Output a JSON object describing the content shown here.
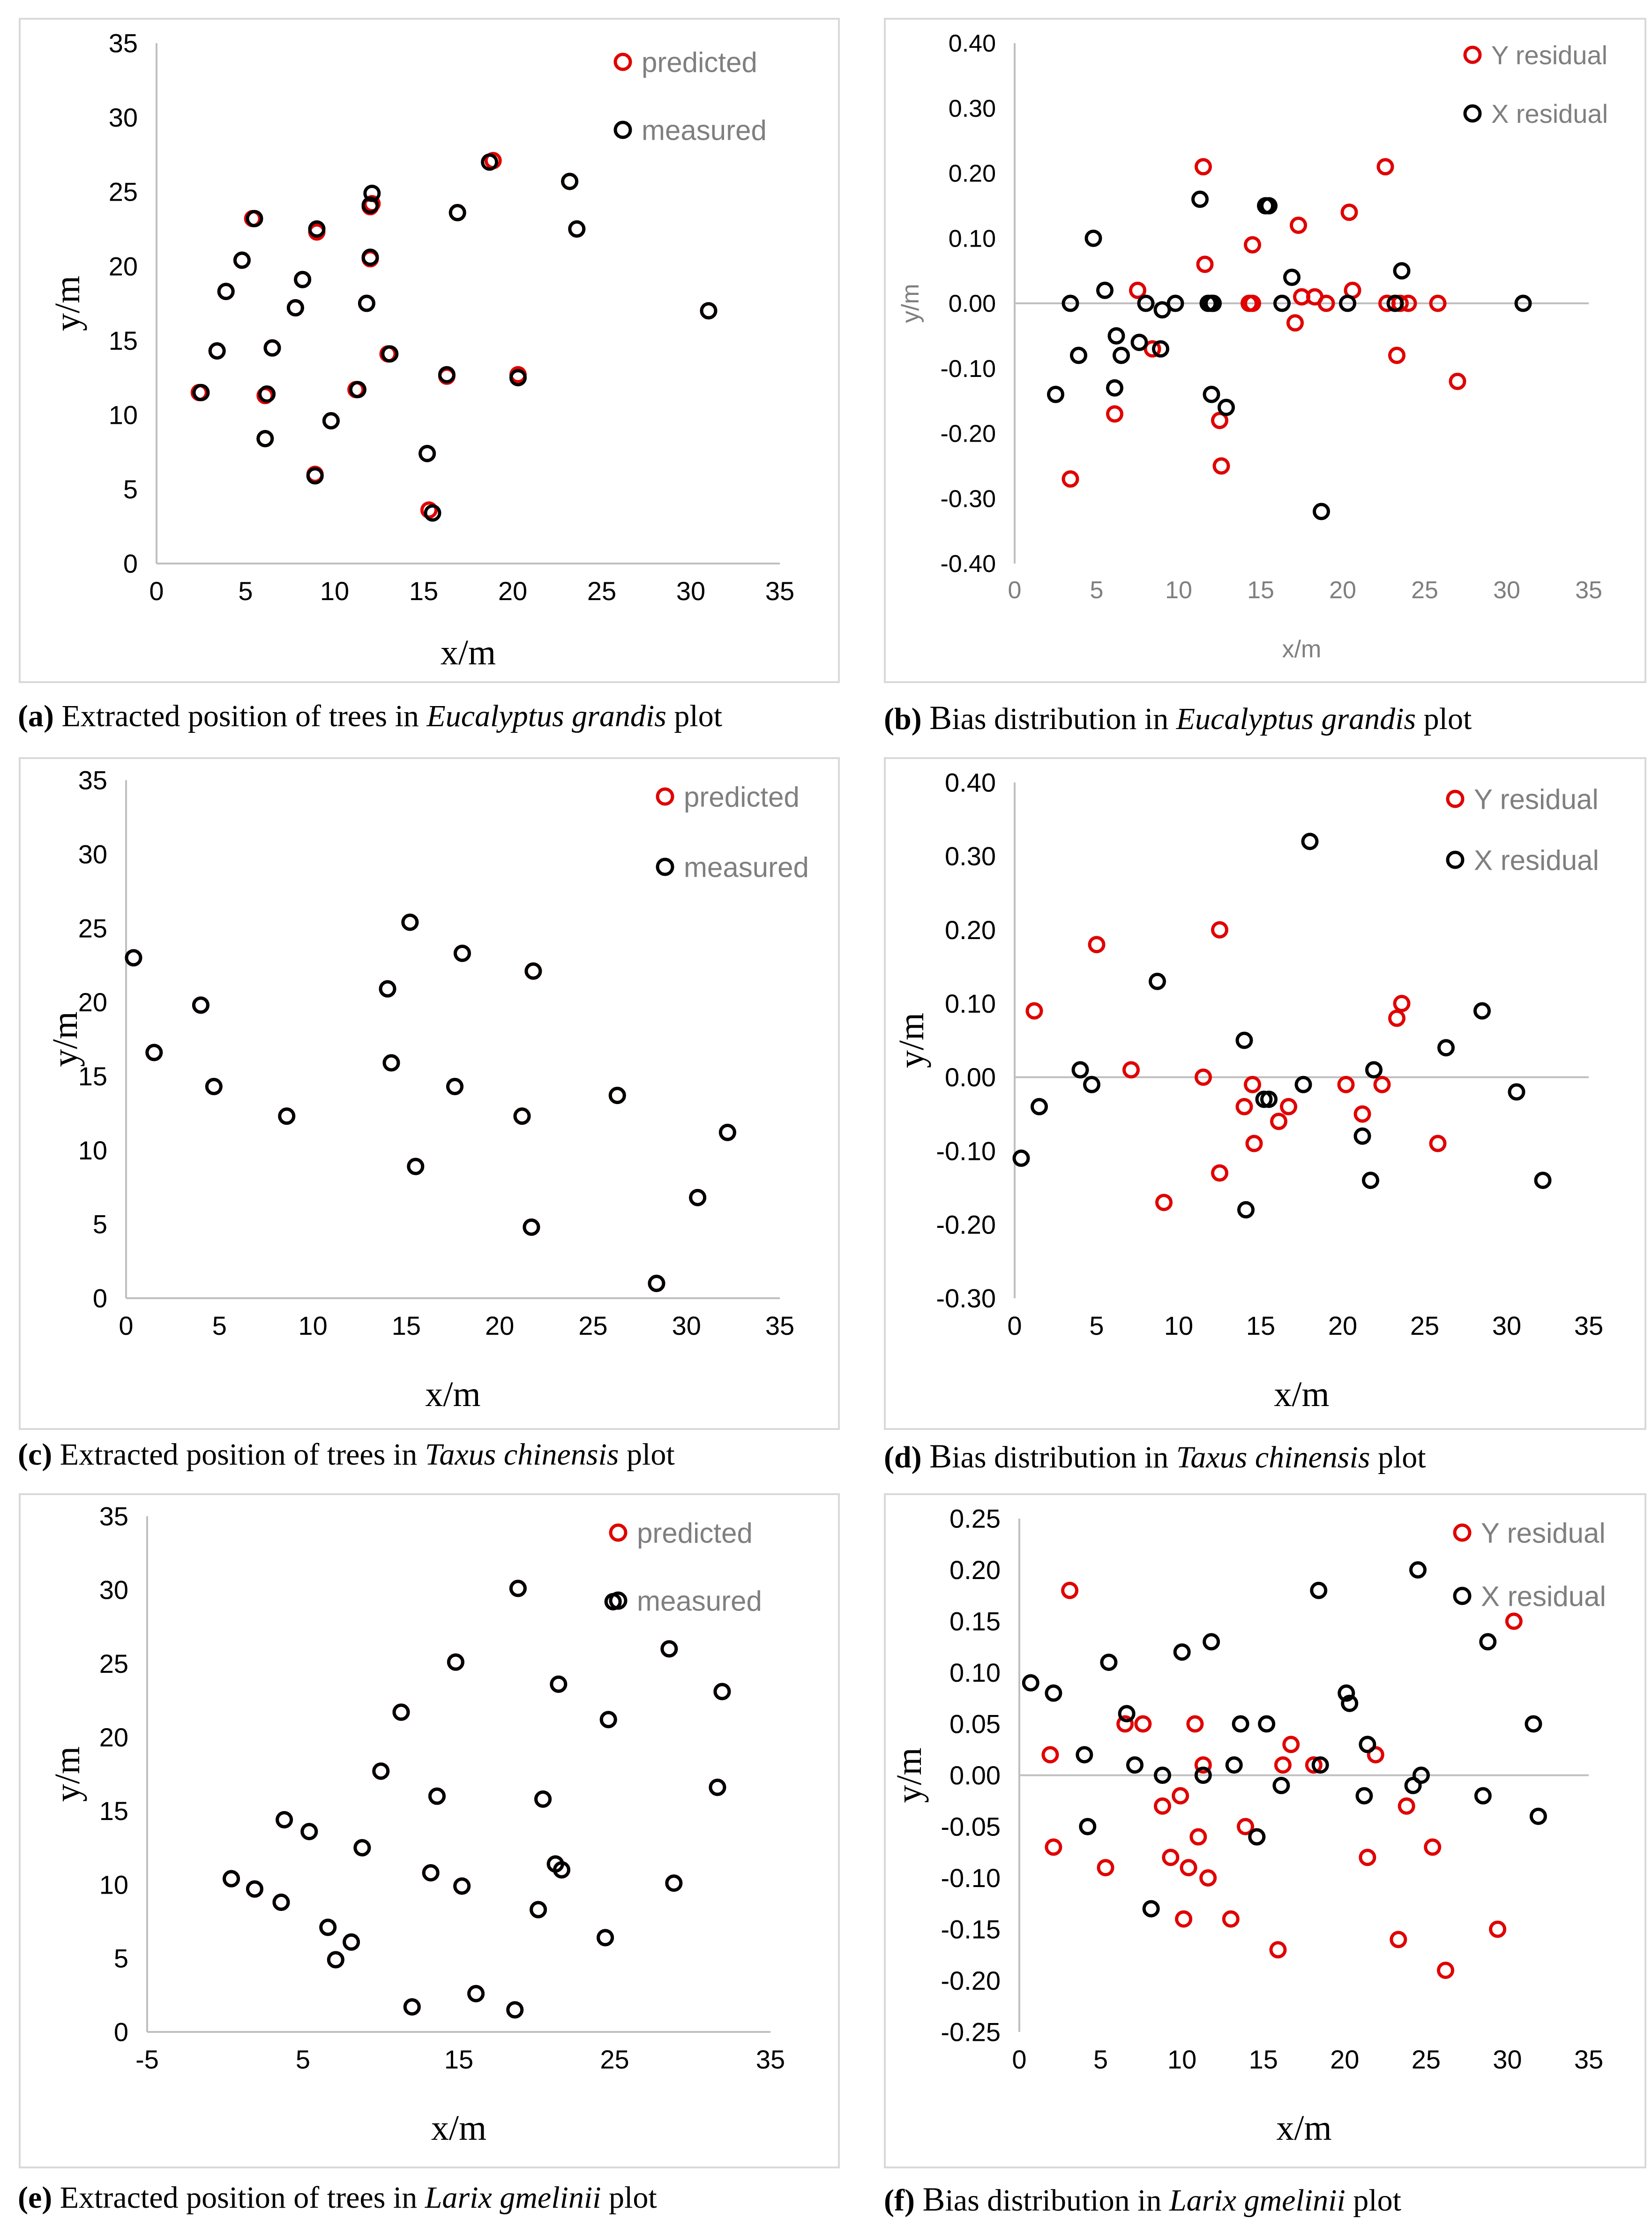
{
  "colors": {
    "predicted": "#e00000",
    "measured": "#000000",
    "axis": "#bfbfbf",
    "legend_text": "#7f7f7f"
  },
  "captions": {
    "a": {
      "label": "(a)",
      "pre": " Extracted position of trees in ",
      "species": "Eucalyptus grandis",
      "post": " plot"
    },
    "b": {
      "label": "(b)",
      "b": "B",
      "pre": "ias distribution in ",
      "species": "Eucalyptus grandis",
      "post": " plot"
    },
    "c": {
      "label": "(c)",
      "pre": " Extracted position of trees in ",
      "species": "Taxus chinensis",
      "post": " plot"
    },
    "d": {
      "label": "(d)",
      "b": "B",
      "pre": "ias distribution in ",
      "species": "Taxus chinensis",
      "post": " plot"
    },
    "e": {
      "label": "(e)",
      "pre": " Extracted position of trees in ",
      "species": "Larix gmelinii",
      "post": " plot"
    },
    "f": {
      "label": "(f)",
      "b": "B",
      "pre": "ias distribution in ",
      "species": "Larix gmelinii",
      "post": " plot"
    }
  },
  "chart_data": [
    {
      "id": "a",
      "type": "scatter",
      "xlabel": "x/m",
      "ylabel": "y/m",
      "xlim": [
        0,
        35
      ],
      "ylim": [
        0,
        35
      ],
      "xticks": [
        "0",
        "5",
        "10",
        "15",
        "20",
        "25",
        "30",
        "35"
      ],
      "yticks": [
        "0",
        "5",
        "10",
        "15",
        "20",
        "25",
        "30",
        "35"
      ],
      "series": [
        {
          "name": "predicted",
          "x": [
            2.4,
            3.4,
            3.9,
            4.8,
            5.4,
            6.1,
            6.1,
            6.5,
            7.8,
            8.2,
            8.9,
            9.0,
            9.8,
            11.2,
            11.8,
            12.0,
            12.0,
            12.1,
            13.0,
            15.2,
            15.3,
            16.3,
            16.9,
            18.9,
            20.3,
            23.2,
            23.6,
            31.0
          ],
          "y": [
            11.5,
            14.3,
            18.3,
            20.4,
            23.2,
            8.4,
            11.3,
            14.5,
            17.2,
            19.1,
            6.0,
            22.3,
            9.6,
            11.7,
            17.5,
            20.5,
            24.0,
            24.2,
            14.1,
            7.4,
            3.6,
            12.6,
            23.6,
            27.1,
            12.7,
            25.7,
            22.5,
            17.0
          ]
        },
        {
          "name": "measured",
          "x": [
            2.5,
            3.4,
            3.9,
            4.8,
            5.5,
            6.1,
            6.2,
            6.5,
            7.8,
            8.2,
            8.9,
            9.0,
            9.8,
            11.3,
            11.8,
            12.0,
            12.0,
            12.1,
            13.1,
            15.2,
            15.5,
            16.3,
            16.9,
            18.7,
            20.3,
            23.2,
            23.6,
            31.0
          ],
          "y": [
            11.5,
            14.3,
            18.3,
            20.4,
            23.2,
            8.4,
            11.4,
            14.5,
            17.2,
            19.1,
            5.9,
            22.5,
            9.6,
            11.7,
            17.5,
            20.6,
            24.1,
            24.9,
            14.1,
            7.4,
            3.4,
            12.7,
            23.6,
            27.0,
            12.5,
            25.7,
            22.5,
            17.0
          ]
        }
      ],
      "legend": [
        "predicted",
        "measured"
      ]
    },
    {
      "id": "b",
      "type": "scatter",
      "xlabel": "x/m",
      "ylabel": "y/m",
      "xlim": [
        0,
        35
      ],
      "ylim": [
        -0.4,
        0.4
      ],
      "xticks": [
        "0",
        "5",
        "10",
        "15",
        "20",
        "25",
        "30",
        "35"
      ],
      "yticks": [
        "-0.40",
        "-0.30",
        "-0.20",
        "-0.10",
        "0.00",
        "0.10",
        "0.20",
        "0.30",
        "0.40"
      ],
      "series": [
        {
          "name": "Y residual",
          "x": [
            3.4,
            6.1,
            7.5,
            8.4,
            11.5,
            11.6,
            12.5,
            12.6,
            14.3,
            14.5,
            14.5,
            17.1,
            17.3,
            17.5,
            18.3,
            19.0,
            20.4,
            20.6,
            22.6,
            22.7,
            23.3,
            23.5,
            24.0,
            25.8,
            27.0
          ],
          "y": [
            -0.27,
            -0.17,
            0.02,
            -0.07,
            0.21,
            0.06,
            -0.18,
            -0.25,
            0.0,
            0.09,
            0.0,
            -0.03,
            0.12,
            0.01,
            0.01,
            0.0,
            0.14,
            0.02,
            0.21,
            0.0,
            -0.08,
            0.0,
            0.0,
            0.0,
            -0.12
          ]
        },
        {
          "name": "X residual",
          "x": [
            2.5,
            3.4,
            3.9,
            4.8,
            5.5,
            6.1,
            6.2,
            6.5,
            7.6,
            8.0,
            8.9,
            9.0,
            9.8,
            11.3,
            11.8,
            12.0,
            12.0,
            12.1,
            12.9,
            15.3,
            15.5,
            16.3,
            16.9,
            18.7,
            20.3,
            23.2,
            23.6,
            31.0
          ],
          "y": [
            -0.14,
            0.0,
            -0.08,
            0.1,
            0.02,
            -0.13,
            -0.05,
            -0.08,
            -0.06,
            0.0,
            -0.07,
            -0.01,
            0.0,
            0.16,
            0.0,
            -0.14,
            0.0,
            0.0,
            -0.16,
            0.15,
            0.15,
            0.0,
            0.04,
            -0.32,
            0.0,
            0.0,
            0.05,
            0.0
          ]
        }
      ],
      "legend": [
        "Y residual",
        "X residual"
      ]
    },
    {
      "id": "c",
      "type": "scatter",
      "xlabel": "x/m",
      "ylabel": "y/m",
      "xlim": [
        0,
        35
      ],
      "ylim": [
        0,
        35
      ],
      "xticks": [
        "0",
        "5",
        "10",
        "15",
        "20",
        "25",
        "30",
        "35"
      ],
      "yticks": [
        "0",
        "5",
        "10",
        "15",
        "20",
        "25",
        "30",
        "35"
      ],
      "series": [
        {
          "name": "predicted",
          "x": [
            0.4,
            1.5,
            4.0,
            4.7,
            8.6,
            14.0,
            14.2,
            15.2,
            15.5,
            17.6,
            18.0,
            21.2,
            21.8,
            21.7,
            26.3,
            28.4,
            30.6,
            32.2
          ],
          "y": [
            23.0,
            16.6,
            19.8,
            14.3,
            12.3,
            20.9,
            15.9,
            25.4,
            8.9,
            14.3,
            23.3,
            12.3,
            22.1,
            4.8,
            13.7,
            1.0,
            6.8,
            11.2
          ]
        },
        {
          "name": "measured",
          "x": [
            0.4,
            1.5,
            4.0,
            4.7,
            8.6,
            14.0,
            14.2,
            15.2,
            15.5,
            17.6,
            18.0,
            21.2,
            21.8,
            21.7,
            26.3,
            28.4,
            30.6,
            32.2
          ],
          "y": [
            23.0,
            16.6,
            19.8,
            14.3,
            12.3,
            20.9,
            15.9,
            25.4,
            8.9,
            14.3,
            23.3,
            12.3,
            22.1,
            4.8,
            13.7,
            1.0,
            6.8,
            11.2
          ]
        }
      ],
      "legend": [
        "predicted",
        "measured"
      ]
    },
    {
      "id": "d",
      "type": "scatter",
      "xlabel": "x/m",
      "ylabel": "y/m",
      "xlim": [
        0,
        35
      ],
      "ylim": [
        -0.3,
        0.4
      ],
      "xticks": [
        "0",
        "5",
        "10",
        "15",
        "20",
        "25",
        "30",
        "35"
      ],
      "yticks": [
        "-0.30",
        "-0.20",
        "-0.10",
        "0.00",
        "0.10",
        "0.20",
        "0.30",
        "0.40"
      ],
      "series": [
        {
          "name": "Y residual",
          "x": [
            1.2,
            5.0,
            7.1,
            9.1,
            11.5,
            12.5,
            12.5,
            14.0,
            14.5,
            14.6,
            16.1,
            16.7,
            20.2,
            21.2,
            22.4,
            23.3,
            23.6,
            25.8
          ],
          "y": [
            0.09,
            0.18,
            0.01,
            -0.17,
            0.0,
            0.2,
            -0.13,
            -0.04,
            -0.01,
            -0.09,
            -0.06,
            -0.04,
            -0.01,
            -0.05,
            -0.01,
            0.08,
            0.1,
            -0.09
          ]
        },
        {
          "name": "X residual",
          "x": [
            0.4,
            1.5,
            4.0,
            4.7,
            8.7,
            14.0,
            14.1,
            15.2,
            15.5,
            17.6,
            18.0,
            21.2,
            21.7,
            21.9,
            26.3,
            28.5,
            30.6,
            32.2
          ],
          "y": [
            -0.11,
            -0.04,
            0.01,
            -0.01,
            0.13,
            0.05,
            -0.18,
            -0.03,
            -0.03,
            -0.01,
            0.32,
            -0.08,
            -0.14,
            0.01,
            0.04,
            0.09,
            -0.02,
            -0.14
          ]
        }
      ],
      "legend": [
        "Y residual",
        "X residual"
      ]
    },
    {
      "id": "e",
      "type": "scatter",
      "xlabel": "x/m",
      "ylabel": "y/m",
      "xlim": [
        -5,
        35
      ],
      "ylim": [
        0,
        35
      ],
      "xticks": [
        "-5",
        "5",
        "15",
        "25",
        "35"
      ],
      "yticks": [
        "0",
        "5",
        "10",
        "15",
        "20",
        "25",
        "30",
        "35"
      ],
      "series": [
        {
          "name": "predicted",
          "x": [
            0.4,
            1.9,
            3.6,
            3.8,
            5.4,
            6.6,
            7.1,
            8.1,
            8.8,
            10.0,
            11.3,
            12.0,
            13.2,
            13.6,
            14.8,
            15.2,
            16.1,
            18.6,
            18.8,
            20.1,
            20.4,
            21.2,
            21.4,
            21.6,
            24.4,
            24.6,
            24.9,
            28.5,
            28.8,
            31.6,
            31.9
          ],
          "y": [
            10.4,
            9.7,
            8.8,
            14.4,
            13.6,
            7.1,
            4.9,
            6.1,
            12.5,
            17.7,
            21.7,
            1.7,
            10.8,
            16.0,
            25.1,
            9.9,
            2.6,
            1.5,
            30.1,
            8.3,
            15.8,
            11.4,
            23.6,
            11.0,
            6.4,
            21.2,
            29.2,
            26.0,
            10.1,
            16.6,
            23.1
          ]
        },
        {
          "name": "measured",
          "x": [
            0.4,
            1.9,
            3.6,
            3.8,
            5.4,
            6.6,
            7.1,
            8.1,
            8.8,
            10.0,
            11.3,
            12.0,
            13.2,
            13.6,
            14.8,
            15.2,
            16.1,
            18.6,
            18.8,
            20.1,
            20.4,
            21.2,
            21.4,
            21.6,
            24.4,
            24.6,
            24.9,
            28.5,
            28.8,
            31.6,
            31.9
          ],
          "y": [
            10.4,
            9.7,
            8.8,
            14.4,
            13.6,
            7.1,
            4.9,
            6.1,
            12.5,
            17.7,
            21.7,
            1.7,
            10.8,
            16.0,
            25.1,
            9.9,
            2.6,
            1.5,
            30.1,
            8.3,
            15.8,
            11.4,
            23.6,
            11.0,
            6.4,
            21.2,
            29.2,
            26.0,
            10.1,
            16.6,
            23.1
          ]
        }
      ],
      "legend": [
        "predicted",
        "measured"
      ]
    },
    {
      "id": "f",
      "type": "scatter",
      "xlabel": "x/m",
      "ylabel": "y/m",
      "xlim": [
        0,
        35
      ],
      "ylim": [
        -0.25,
        0.25
      ],
      "xticks": [
        "0",
        "5",
        "10",
        "15",
        "20",
        "25",
        "30",
        "35"
      ],
      "yticks": [
        "-0.25",
        "-0.20",
        "-0.15",
        "-0.10",
        "-0.05",
        "0.00",
        "0.05",
        "0.10",
        "0.15",
        "0.20",
        "0.25"
      ],
      "series": [
        {
          "name": "Y residual",
          "x": [
            1.9,
            2.1,
            3.1,
            5.3,
            6.5,
            7.6,
            8.8,
            9.3,
            9.9,
            10.1,
            10.4,
            10.8,
            11.0,
            11.3,
            11.6,
            13.0,
            13.9,
            14.6,
            15.9,
            16.2,
            16.7,
            18.1,
            21.4,
            21.9,
            23.3,
            23.8,
            25.4,
            26.2,
            29.4,
            30.4
          ],
          "y": [
            0.02,
            -0.07,
            0.18,
            -0.09,
            0.05,
            0.05,
            -0.03,
            -0.08,
            -0.02,
            -0.14,
            -0.09,
            0.05,
            -0.06,
            0.01,
            -0.1,
            -0.14,
            -0.05,
            -0.06,
            -0.17,
            0.01,
            0.03,
            0.01,
            -0.08,
            0.02,
            -0.16,
            -0.03,
            -0.07,
            -0.19,
            -0.15,
            0.15
          ]
        },
        {
          "name": "X residual",
          "x": [
            0.7,
            2.1,
            4.0,
            4.2,
            5.5,
            6.6,
            7.1,
            8.1,
            8.8,
            10.0,
            11.3,
            11.8,
            13.2,
            13.6,
            14.6,
            15.2,
            16.1,
            18.4,
            18.5,
            20.1,
            20.3,
            21.2,
            21.4,
            24.2,
            24.5,
            24.7,
            28.5,
            28.8,
            31.6,
            31.9
          ],
          "y": [
            0.09,
            0.08,
            0.02,
            -0.05,
            0.11,
            0.06,
            0.01,
            -0.13,
            0.0,
            0.12,
            0.0,
            0.13,
            0.01,
            0.05,
            -0.06,
            0.05,
            -0.01,
            0.18,
            0.01,
            0.08,
            0.07,
            -0.02,
            0.03,
            -0.01,
            0.2,
            0.0,
            -0.02,
            0.13,
            0.05,
            -0.04
          ]
        }
      ],
      "legend": [
        "Y residual",
        "X residual"
      ]
    }
  ]
}
